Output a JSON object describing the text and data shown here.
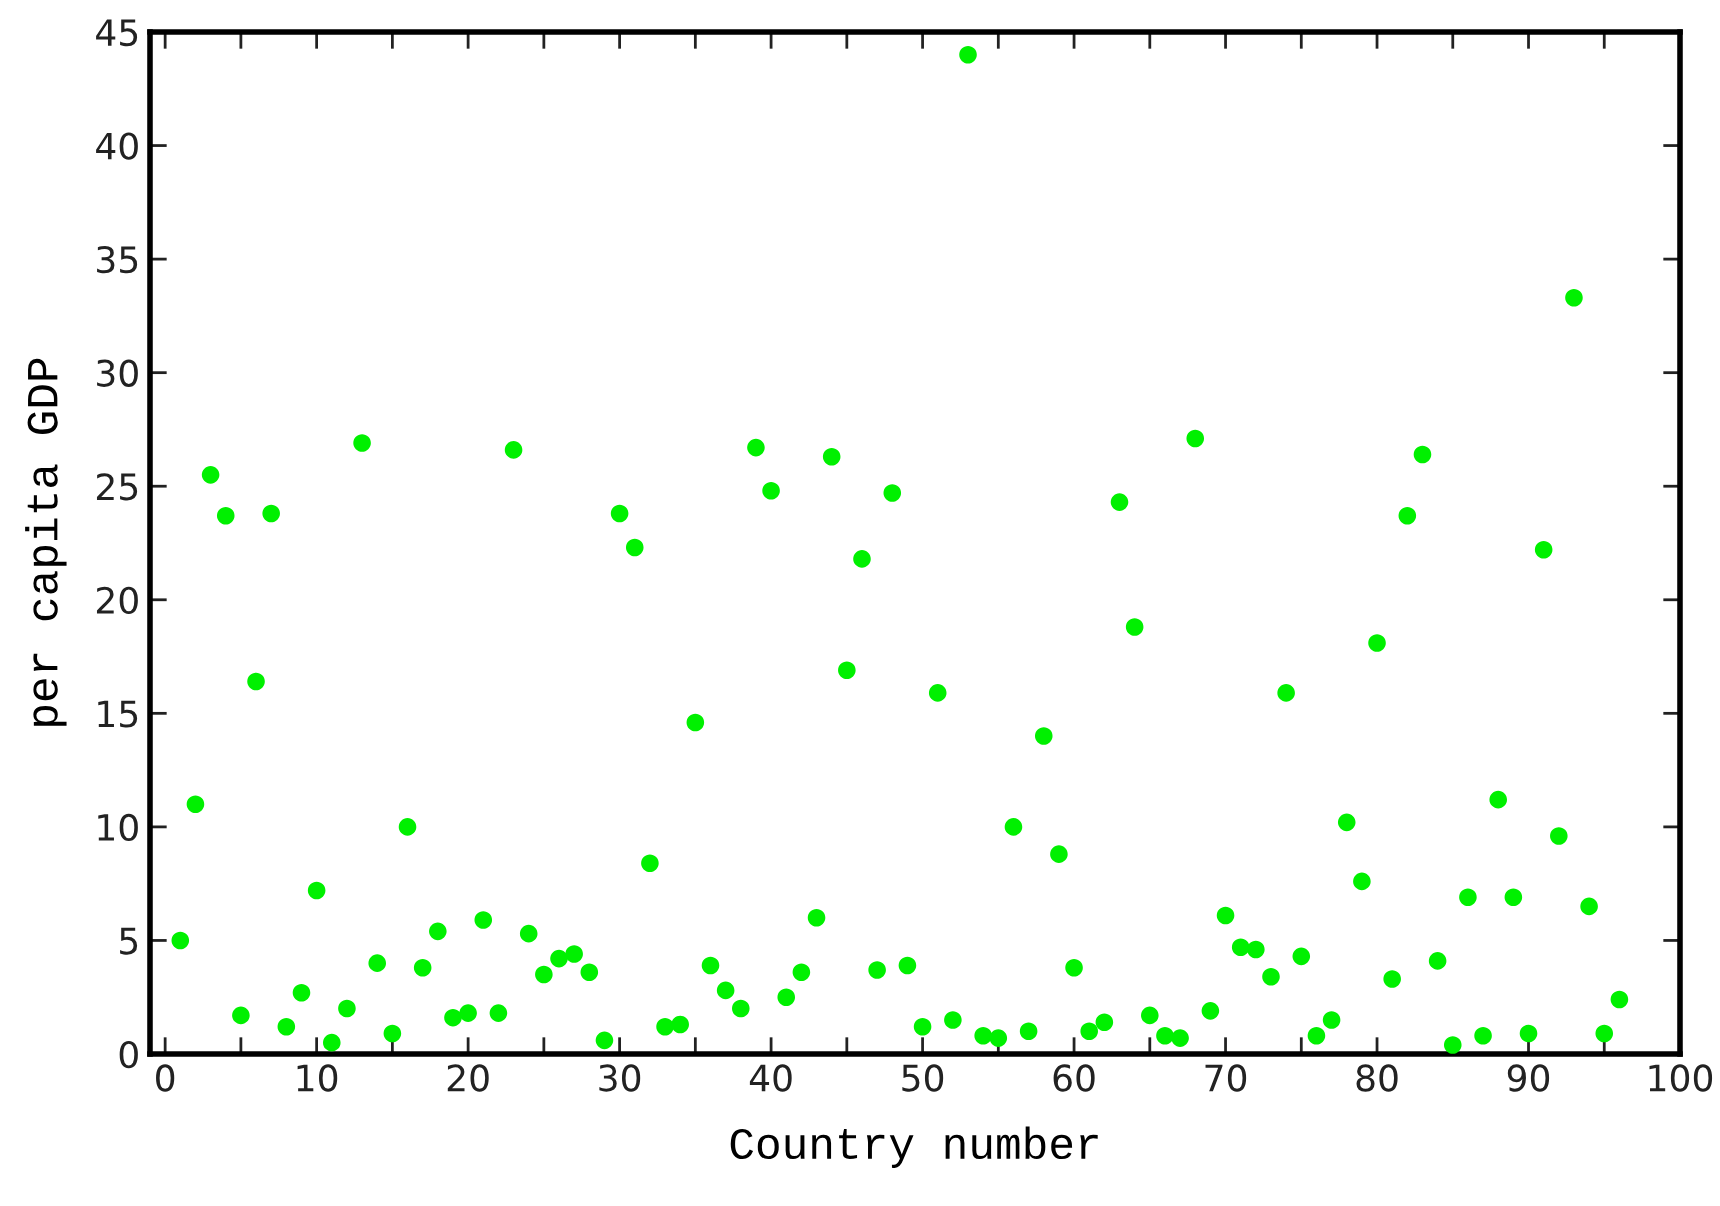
{
  "chart_data": {
    "type": "scatter",
    "xlabel": "Country number",
    "ylabel": "per capita GDP",
    "x": [
      1,
      2,
      3,
      4,
      5,
      6,
      7,
      8,
      9,
      10,
      11,
      12,
      13,
      14,
      15,
      16,
      17,
      18,
      19,
      20,
      21,
      22,
      23,
      24,
      25,
      26,
      27,
      28,
      29,
      30,
      31,
      32,
      33,
      34,
      35,
      36,
      37,
      38,
      39,
      40,
      41,
      42,
      43,
      44,
      45,
      46,
      47,
      48,
      49,
      50,
      51,
      52,
      53,
      54,
      55,
      56,
      57,
      58,
      59,
      60,
      61,
      62,
      63,
      64,
      65,
      66,
      67,
      68,
      69,
      70,
      71,
      72,
      73,
      74,
      75,
      76,
      77,
      78,
      79,
      80,
      81,
      82,
      83,
      84,
      85,
      86,
      87,
      88,
      89,
      90,
      91,
      92,
      93,
      94,
      95,
      96
    ],
    "values": [
      5.0,
      11.0,
      25.5,
      23.7,
      1.7,
      16.4,
      23.8,
      1.2,
      2.7,
      7.2,
      0.5,
      2.0,
      26.9,
      4.0,
      0.9,
      10.0,
      3.8,
      5.4,
      1.6,
      1.8,
      5.9,
      1.8,
      26.6,
      5.3,
      3.5,
      4.2,
      4.4,
      3.6,
      0.6,
      23.8,
      22.3,
      8.4,
      1.2,
      1.3,
      14.6,
      3.9,
      2.8,
      2.0,
      26.7,
      24.8,
      2.5,
      3.6,
      6.0,
      26.3,
      16.9,
      21.8,
      3.7,
      24.7,
      3.9,
      1.2,
      15.9,
      1.5,
      44.0,
      0.8,
      0.7,
      10.0,
      1.0,
      14.0,
      8.8,
      3.8,
      1.0,
      1.4,
      24.3,
      18.8,
      1.7,
      0.8,
      0.7,
      27.1,
      1.9,
      6.1,
      4.7,
      4.6,
      3.4,
      15.9,
      4.3,
      0.8,
      1.5,
      10.2,
      7.6,
      18.1,
      3.3,
      23.7,
      26.4,
      4.1,
      0.4,
      6.9,
      0.8,
      11.2,
      6.9,
      0.9,
      22.2,
      9.6,
      33.3,
      6.5,
      0.9,
      2.4
    ],
    "color": "#00f000",
    "marker": "circle",
    "xlim": [
      -1,
      100
    ],
    "xticks": [
      0,
      {
        "value": 5,
        "label": null
      },
      10,
      {
        "value": 15,
        "label": null
      },
      20,
      {
        "value": 25,
        "label": null
      },
      30,
      {
        "value": 35,
        "label": null
      },
      40,
      {
        "value": 45,
        "label": null
      },
      50,
      {
        "value": 55,
        "label": null
      },
      60,
      {
        "value": 65,
        "label": null
      },
      70,
      {
        "value": 75,
        "label": null
      },
      80,
      {
        "value": 85,
        "label": null
      },
      90,
      {
        "value": 95,
        "label": null
      },
      100
    ],
    "ylim": [
      0,
      45
    ],
    "yticks": [
      0,
      5,
      10,
      15,
      20,
      25,
      30,
      35,
      40,
      45
    ],
    "grid": false,
    "legend": false
  }
}
